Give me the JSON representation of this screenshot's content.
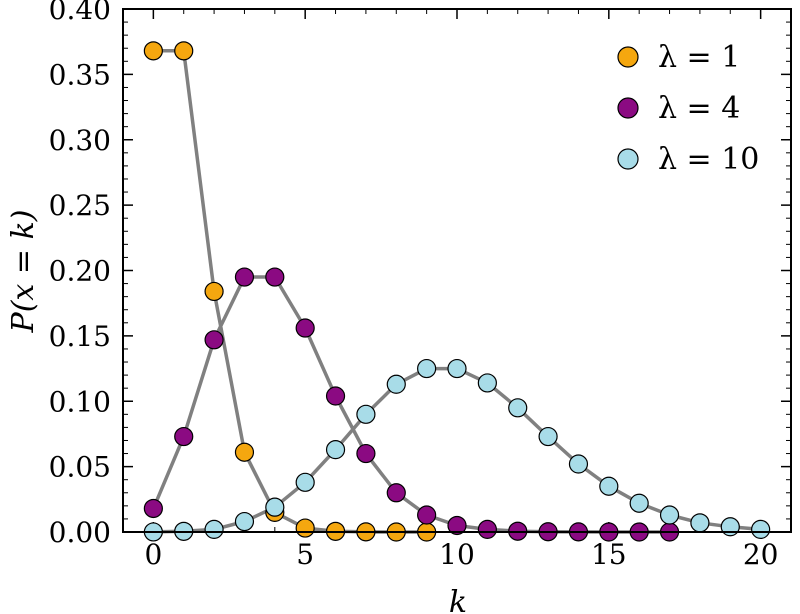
{
  "chart_data": {
    "type": "line",
    "xlabel": "k",
    "ylabel": "P(x = k)",
    "xlim": [
      -1,
      21
    ],
    "ylim": [
      0,
      0.4
    ],
    "xticks": [
      0,
      5,
      10,
      15,
      20
    ],
    "yticks": [
      0.0,
      0.05,
      0.1,
      0.15,
      0.2,
      0.25,
      0.3,
      0.35,
      0.4
    ],
    "xtick_labels": [
      "0",
      "5",
      "10",
      "15",
      "20"
    ],
    "ytick_labels": [
      "0.00",
      "0.05",
      "0.10",
      "0.15",
      "0.20",
      "0.25",
      "0.30",
      "0.35",
      "0.40"
    ],
    "grid": false,
    "legend_position": "top-right",
    "line_color": "#808080",
    "series": [
      {
        "name": "λ = 1",
        "color": "#f5a70f",
        "x": [
          0,
          1,
          2,
          3,
          4,
          5,
          6,
          7,
          8,
          9
        ],
        "values": [
          0.368,
          0.368,
          0.184,
          0.061,
          0.015,
          0.003,
          0.0005,
          0.0001,
          0.0,
          0.0
        ]
      },
      {
        "name": "λ = 4",
        "color": "#8b0a82",
        "x": [
          0,
          1,
          2,
          3,
          4,
          5,
          6,
          7,
          8,
          9,
          10,
          11,
          12,
          13,
          14,
          15,
          16,
          17
        ],
        "values": [
          0.018,
          0.073,
          0.147,
          0.195,
          0.195,
          0.156,
          0.104,
          0.06,
          0.03,
          0.013,
          0.005,
          0.002,
          0.0006,
          0.0002,
          0.0001,
          0.0,
          0.0,
          0.0
        ]
      },
      {
        "name": "λ = 10",
        "color": "#a8dce8",
        "x": [
          0,
          1,
          2,
          3,
          4,
          5,
          6,
          7,
          8,
          9,
          10,
          11,
          12,
          13,
          14,
          15,
          16,
          17,
          18,
          19,
          20
        ],
        "values": [
          5e-05,
          0.0005,
          0.002,
          0.008,
          0.019,
          0.038,
          0.063,
          0.09,
          0.113,
          0.125,
          0.125,
          0.114,
          0.095,
          0.073,
          0.052,
          0.035,
          0.022,
          0.013,
          0.007,
          0.004,
          0.002
        ]
      }
    ]
  }
}
